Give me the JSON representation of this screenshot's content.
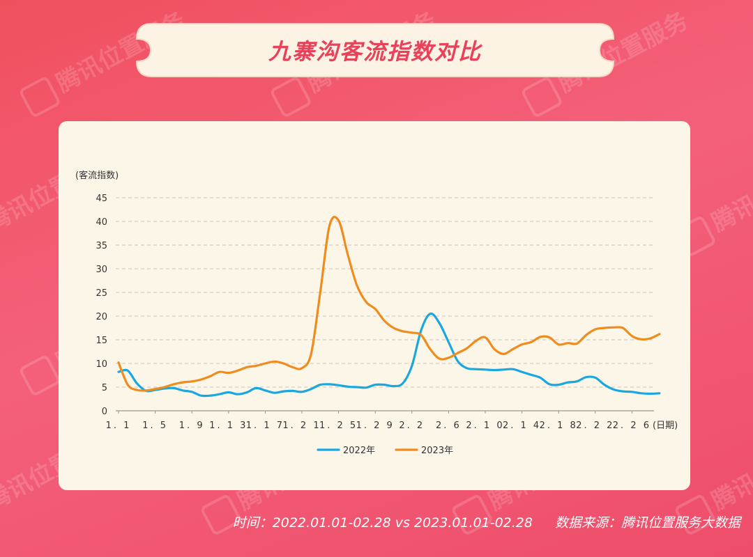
{
  "title": "九寨沟客流指数对比",
  "watermark": "腾讯位置服务",
  "footer": {
    "time_label": "时间：",
    "time_value": "2022.01.01-02.28 vs 2023.01.01-02.28",
    "source_label": "数据来源：",
    "source_value": "腾讯位置服务大数据"
  },
  "colors": {
    "series_2022": "#1aa7e0",
    "series_2023": "#f08c1e",
    "title_text": "#e8425a",
    "panel_bg": "#fcf6e8"
  },
  "chart_data": {
    "type": "line",
    "ylabel": "(客流指数)",
    "xlabel": "(日期)",
    "ylim": [
      0,
      45
    ],
    "yticks": [
      0,
      5,
      10,
      15,
      20,
      25,
      30,
      35,
      40,
      45
    ],
    "grid": "horizontal dashed",
    "legend_position": "bottom",
    "x_tick_labels": [
      "1.1",
      "1.5",
      "1.9",
      "1.13",
      "1.17",
      "1.21",
      "1.25",
      "1.29",
      "2.2",
      "2.6",
      "2.10",
      "2.14",
      "2.18",
      "2.22",
      "2.26"
    ],
    "series": [
      {
        "name": "2022年",
        "values": [
          8.2,
          8.5,
          5.8,
          4.2,
          4.4,
          4.7,
          4.8,
          4.3,
          4.0,
          3.2,
          3.2,
          3.5,
          3.9,
          3.5,
          3.9,
          4.8,
          4.3,
          3.8,
          4.1,
          4.2,
          4.0,
          4.6,
          5.5,
          5.6,
          5.4,
          5.1,
          5.0,
          4.9,
          5.5,
          5.5,
          5.2,
          5.8,
          9.5,
          17.0,
          20.5,
          18.5,
          14.5,
          10.5,
          9.0,
          8.8,
          8.7,
          8.6,
          8.7,
          8.8,
          8.2,
          7.6,
          7.0,
          5.6,
          5.5,
          6.0,
          6.2,
          7.1,
          7.0,
          5.5,
          4.5,
          4.1,
          4.0,
          3.7,
          3.6,
          3.7
        ]
      },
      {
        "name": "2023年",
        "values": [
          10.2,
          5.5,
          4.4,
          4.3,
          4.6,
          5.0,
          5.6,
          6.0,
          6.2,
          6.6,
          7.3,
          8.2,
          8.0,
          8.5,
          9.2,
          9.5,
          10.0,
          10.4,
          10.0,
          9.2,
          9.0,
          12.0,
          25.0,
          39.0,
          40.2,
          33.0,
          26.5,
          23.0,
          21.5,
          19.0,
          17.5,
          16.8,
          16.5,
          16.0,
          13.0,
          11.0,
          11.2,
          12.2,
          13.2,
          14.8,
          15.5,
          13.0,
          12.0,
          13.0,
          14.0,
          14.5,
          15.6,
          15.5,
          14.0,
          14.3,
          14.2,
          16.0,
          17.2,
          17.5,
          17.6,
          17.5,
          15.8,
          15.1,
          15.3,
          16.2
        ]
      }
    ]
  }
}
